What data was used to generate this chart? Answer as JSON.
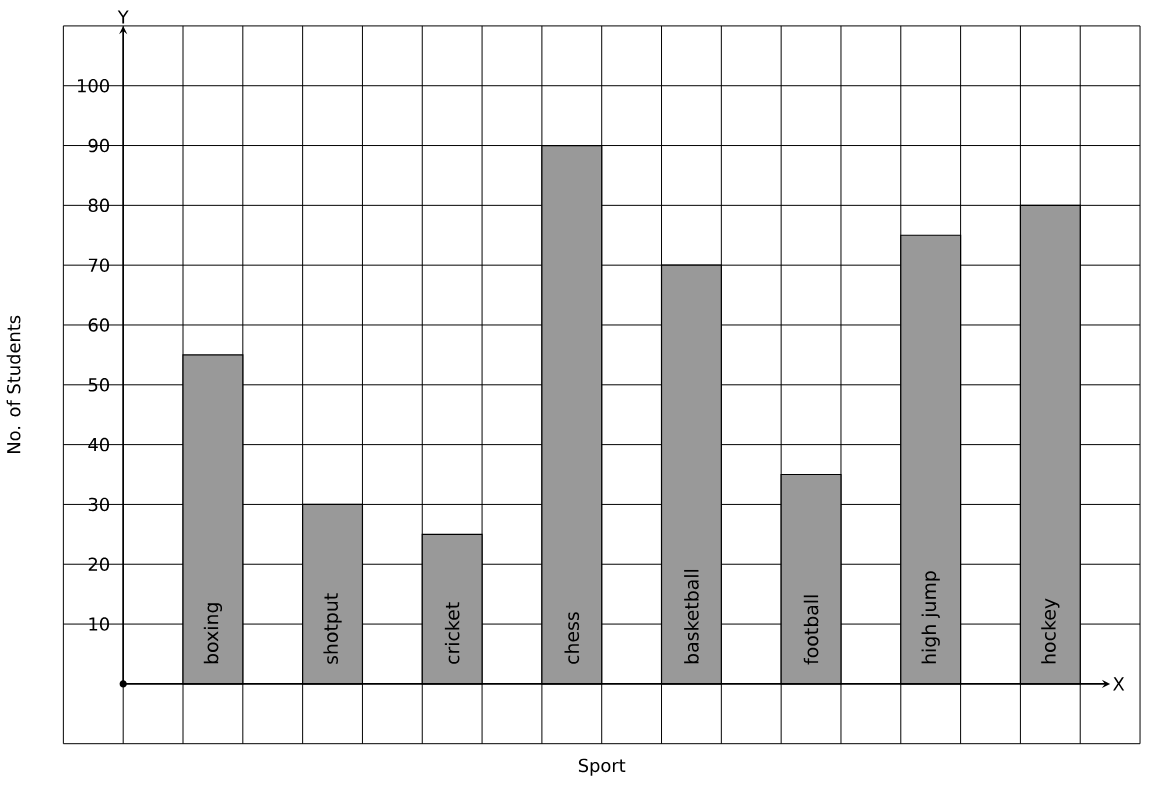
{
  "chart_data": {
    "type": "bar",
    "xlabel": "Sport",
    "ylabel": "No. of Students",
    "categories": [
      "boxing",
      "shotput",
      "cricket",
      "chess",
      "basketball",
      "football",
      "high jump",
      "hockey"
    ],
    "values": [
      55,
      30,
      25,
      90,
      70,
      35,
      75,
      80
    ],
    "color": "#999999",
    "ylim": [
      -10,
      110
    ],
    "yticks": [
      10,
      20,
      30,
      40,
      50,
      60,
      70,
      80,
      90,
      100
    ],
    "grid": true,
    "annotations": [
      "Y",
      "X"
    ]
  }
}
